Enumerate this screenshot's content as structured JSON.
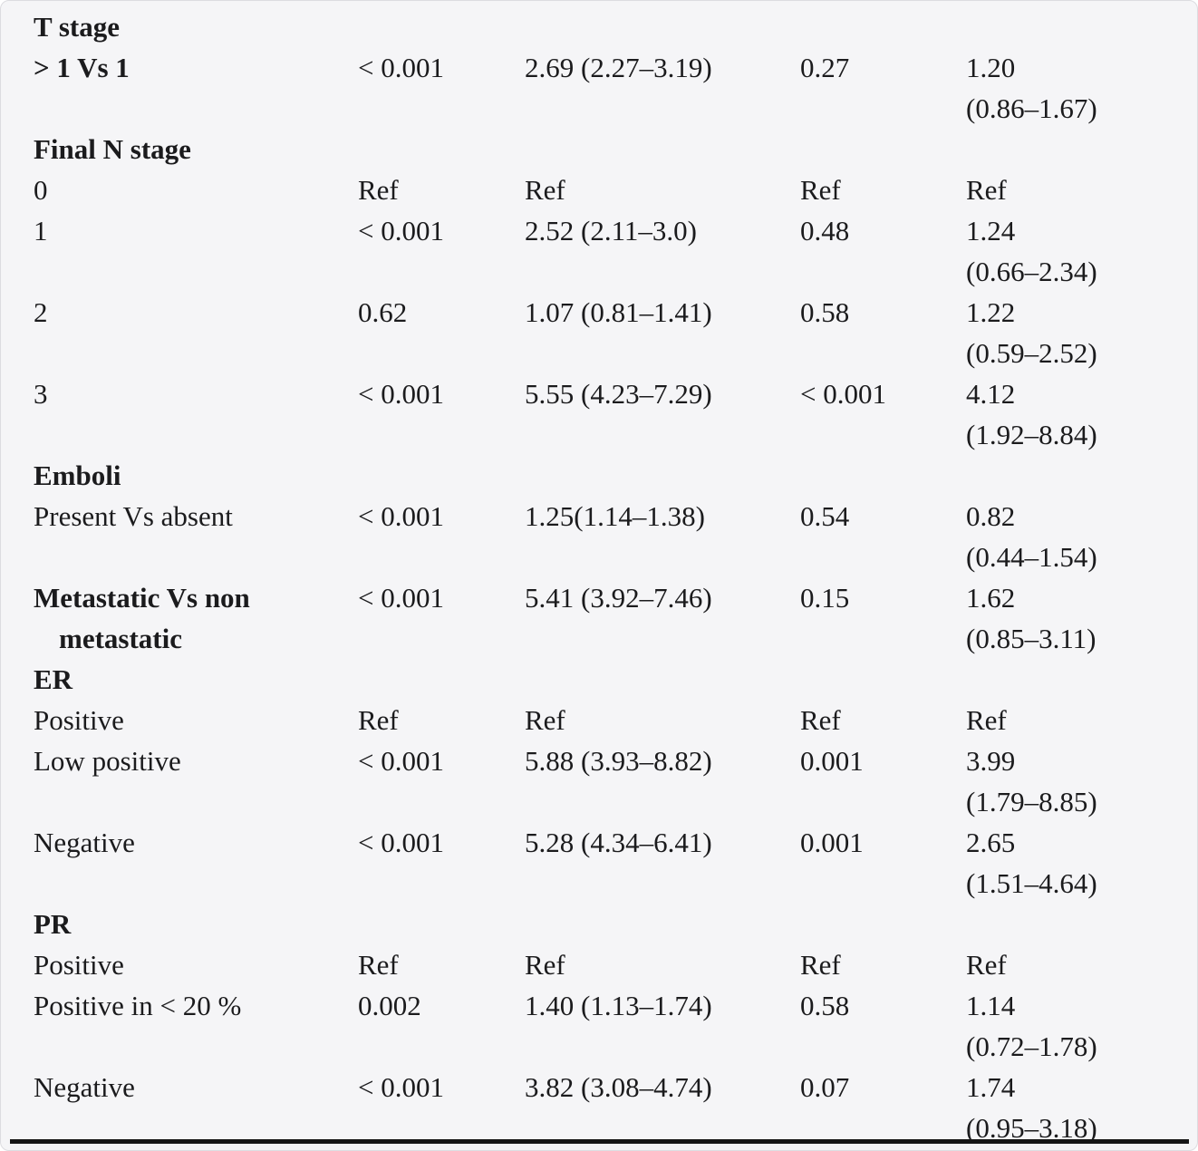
{
  "table": {
    "rows": [
      {
        "type": "section",
        "label": "T stage"
      },
      {
        "type": "data",
        "bold": true,
        "label": "> 1 Vs 1",
        "p1": "< 0.001",
        "hr1": "2.69 (2.27–3.19)",
        "p2": "0.27",
        "hr2_est": "1.20",
        "hr2_ci": "(0.86–1.67)"
      },
      {
        "type": "section",
        "label": "Final N stage"
      },
      {
        "type": "data",
        "bold": false,
        "label": "0",
        "p1": "Ref",
        "hr1": "Ref",
        "p2": "Ref",
        "hr2_est": "Ref",
        "hr2_ci": ""
      },
      {
        "type": "data",
        "bold": false,
        "label": "1",
        "p1": "< 0.001",
        "hr1": "2.52 (2.11–3.0)",
        "p2": "0.48",
        "hr2_est": "1.24",
        "hr2_ci": "(0.66–2.34)"
      },
      {
        "type": "data",
        "bold": false,
        "label": "2",
        "p1": "0.62",
        "hr1": "1.07 (0.81–1.41)",
        "p2": "0.58",
        "hr2_est": "1.22",
        "hr2_ci": "(0.59–2.52)"
      },
      {
        "type": "data",
        "bold": false,
        "label": "3",
        "p1": "< 0.001",
        "hr1": "5.55 (4.23–7.29)",
        "p2": "< 0.001",
        "hr2_est": "4.12",
        "hr2_ci": "(1.92–8.84)"
      },
      {
        "type": "section",
        "label": "Emboli"
      },
      {
        "type": "data",
        "bold": false,
        "label": "Present Vs absent",
        "p1": "< 0.001",
        "hr1": "1.25(1.14–1.38)",
        "p2": "0.54",
        "hr2_est": "0.82",
        "hr2_ci": "(0.44–1.54)"
      },
      {
        "type": "data",
        "bold": true,
        "label": "Metastatic Vs non metastatic",
        "p1": "< 0.001",
        "hr1": "5.41 (3.92–7.46)",
        "p2": "0.15",
        "hr2_est": "1.62",
        "hr2_ci": "(0.85–3.11)"
      },
      {
        "type": "section",
        "label": "ER"
      },
      {
        "type": "data",
        "bold": false,
        "label": "Positive",
        "p1": "Ref",
        "hr1": "Ref",
        "p2": "Ref",
        "hr2_est": "Ref",
        "hr2_ci": ""
      },
      {
        "type": "data",
        "bold": false,
        "label": "Low positive",
        "p1": "< 0.001",
        "hr1": "5.88 (3.93–8.82)",
        "p2": "0.001",
        "hr2_est": "3.99",
        "hr2_ci": "(1.79–8.85)"
      },
      {
        "type": "data",
        "bold": false,
        "label": "Negative",
        "p1": "< 0.001",
        "hr1": "5.28 (4.34–6.41)",
        "p2": "0.001",
        "hr2_est": "2.65",
        "hr2_ci": "(1.51–4.64)"
      },
      {
        "type": "section",
        "label": "PR"
      },
      {
        "type": "data",
        "bold": false,
        "label": "Positive",
        "p1": "Ref",
        "hr1": "Ref",
        "p2": "Ref",
        "hr2_est": "Ref",
        "hr2_ci": ""
      },
      {
        "type": "data",
        "bold": false,
        "label": "Positive in < 20 %",
        "p1": "0.002",
        "hr1": "1.40 (1.13–1.74)",
        "p2": "0.58",
        "hr2_est": "1.14",
        "hr2_ci": "(0.72–1.78)"
      },
      {
        "type": "data",
        "bold": false,
        "label": "Negative",
        "p1": "< 0.001",
        "hr1": "3.82 (3.08–4.74)",
        "p2": "0.07",
        "hr2_est": "1.74",
        "hr2_ci": "(0.95–3.18)"
      }
    ]
  }
}
